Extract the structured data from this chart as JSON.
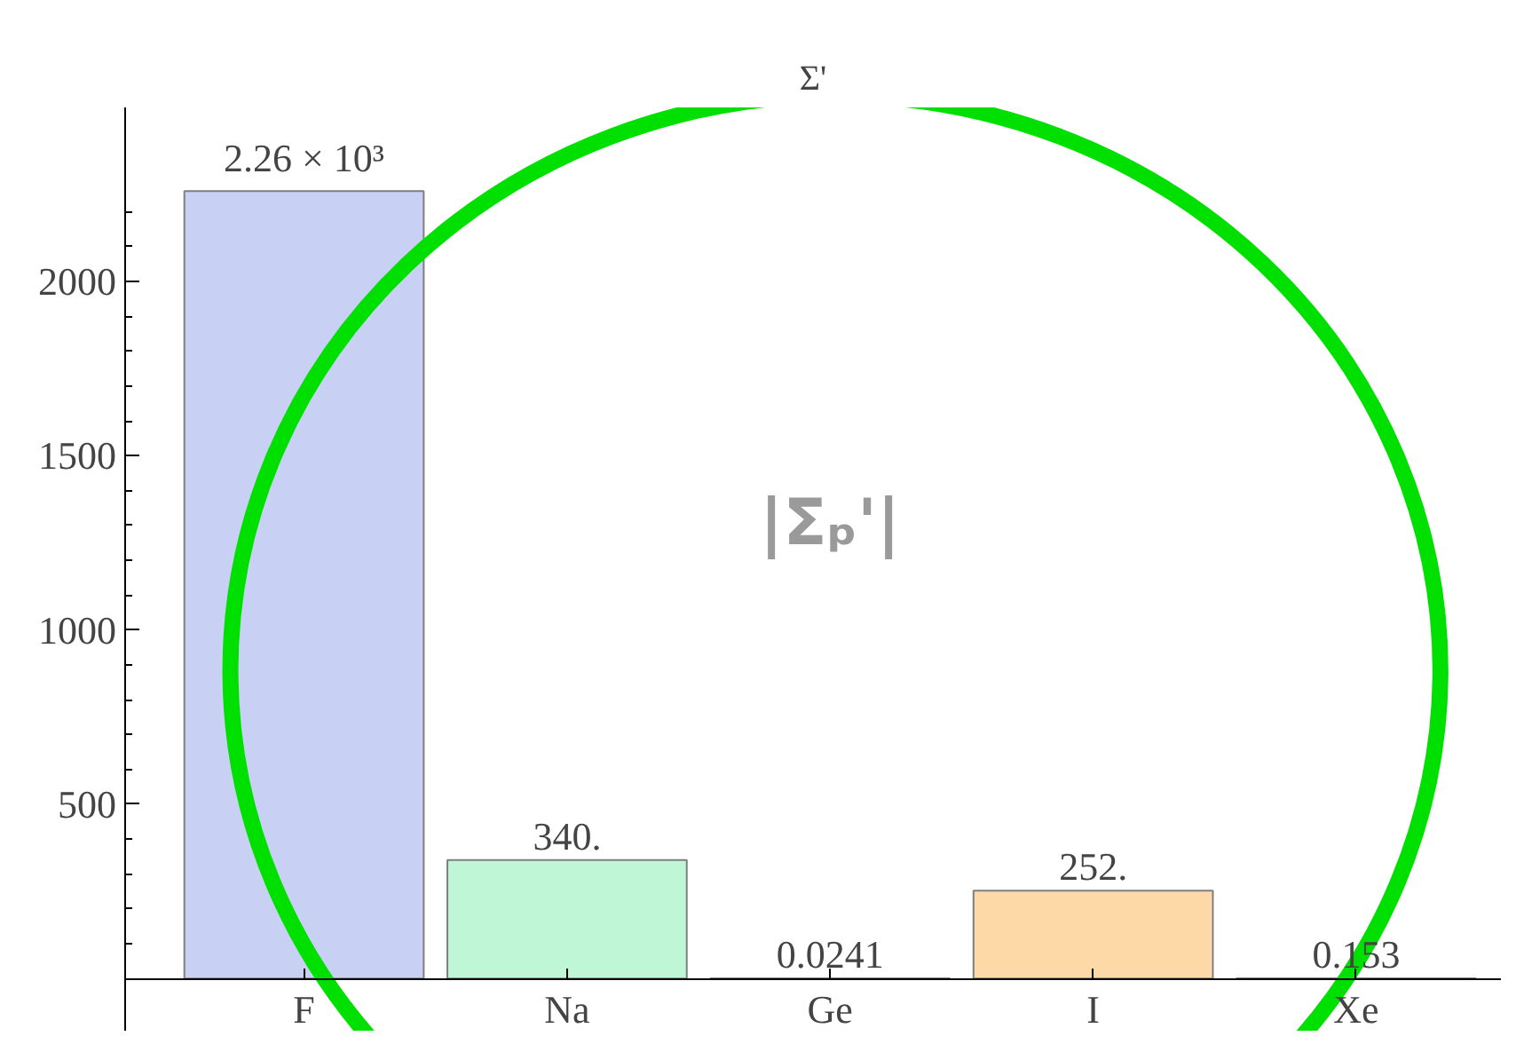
{
  "chart_data": {
    "type": "bar",
    "title": "Σ'",
    "categories": [
      "F",
      "Na",
      "Ge",
      "I",
      "Xe"
    ],
    "values": [
      2260,
      340,
      0.0241,
      252,
      0.153
    ],
    "colors": [
      "#c8d0f4",
      "#bff7d6",
      "#d8d8d8",
      "#fed9a8",
      "#e0c8f0"
    ],
    "value_labels": [
      "2.26 × 10³",
      "340.",
      "0.0241",
      "252.",
      "0.153"
    ],
    "annotations": [
      "|Σₚ'|"
    ],
    "ylim": [
      -150,
      2500
    ],
    "yticks": [
      500,
      1000,
      1500,
      2000
    ],
    "grid": false
  }
}
